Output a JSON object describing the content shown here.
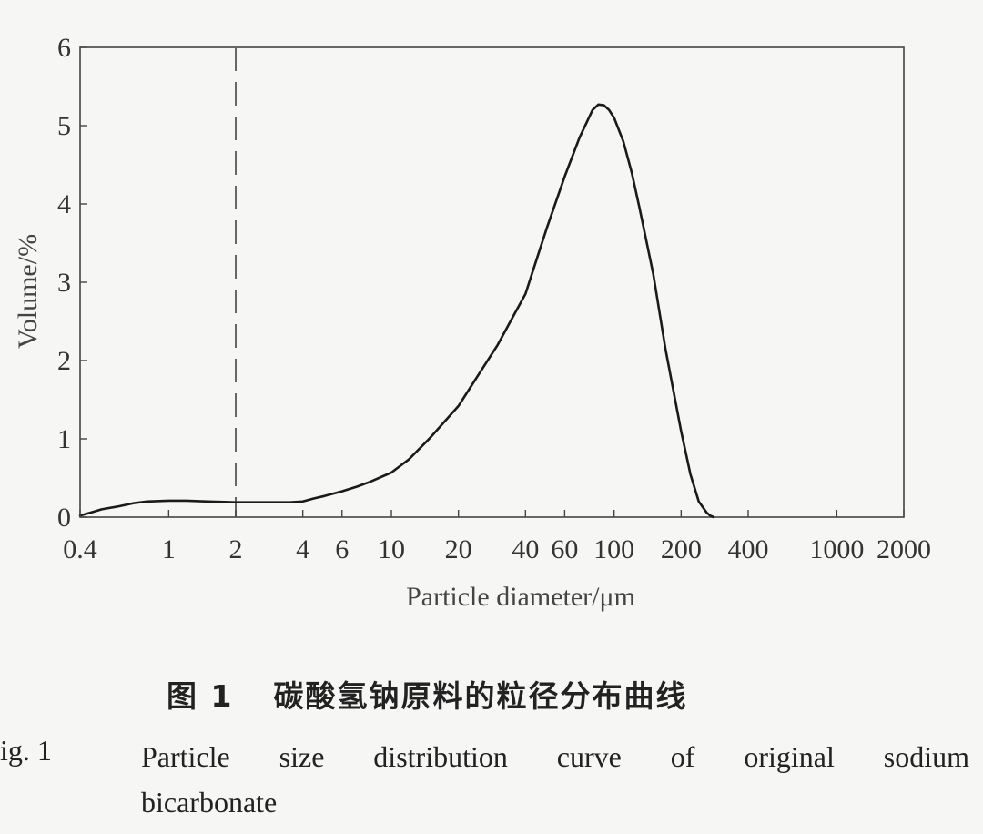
{
  "chart_data": {
    "type": "line",
    "x_scale": "log",
    "xlabel": "Particle diameter/μm",
    "ylabel": "Volume/%",
    "xlim": [
      0.4,
      2000
    ],
    "ylim": [
      0,
      6
    ],
    "x_ticks": [
      0.4,
      1,
      2,
      4,
      6,
      10,
      20,
      40,
      60,
      100,
      200,
      400,
      1000,
      2000
    ],
    "x_tick_labels": [
      "0.4",
      "1",
      "2",
      "4",
      "6",
      "10",
      "20",
      "40",
      "60",
      "100",
      "200",
      "400",
      "1000",
      "2000"
    ],
    "y_ticks": [
      0,
      1,
      2,
      3,
      4,
      5,
      6
    ],
    "y_tick_labels": [
      "0",
      "1",
      "2",
      "3",
      "4",
      "5",
      "6"
    ],
    "grid": false,
    "reference_line": {
      "x": 2,
      "style": "dashed"
    },
    "series": [
      {
        "x": [
          0.4,
          0.45,
          0.5,
          0.6,
          0.7,
          0.8,
          1,
          1.2,
          1.5,
          2,
          2.5,
          3,
          3.5,
          4,
          4.5,
          5,
          6,
          7,
          8,
          10,
          12,
          15,
          20,
          25,
          30,
          35,
          40,
          45,
          50,
          60,
          70,
          80,
          85,
          90,
          95,
          100,
          110,
          120,
          130,
          150,
          170,
          200,
          220,
          240,
          260,
          270,
          280
        ],
        "y": [
          0.02,
          0.06,
          0.1,
          0.14,
          0.18,
          0.2,
          0.21,
          0.21,
          0.2,
          0.19,
          0.19,
          0.19,
          0.19,
          0.2,
          0.24,
          0.27,
          0.33,
          0.39,
          0.45,
          0.57,
          0.74,
          1.02,
          1.42,
          1.85,
          2.2,
          2.55,
          2.85,
          3.3,
          3.7,
          4.35,
          4.85,
          5.2,
          5.27,
          5.26,
          5.2,
          5.1,
          4.8,
          4.4,
          3.95,
          3.1,
          2.15,
          1.1,
          0.55,
          0.2,
          0.06,
          0.02,
          0
        ]
      }
    ]
  },
  "caption": {
    "cn_label": "图 1",
    "cn_text": "碳酸氢钠原料的粒径分布曲线",
    "en_label": "ig. 1",
    "en_text_line1": "Particle size distribution curve of original sodium",
    "en_text_line2": "bicarbonate"
  }
}
